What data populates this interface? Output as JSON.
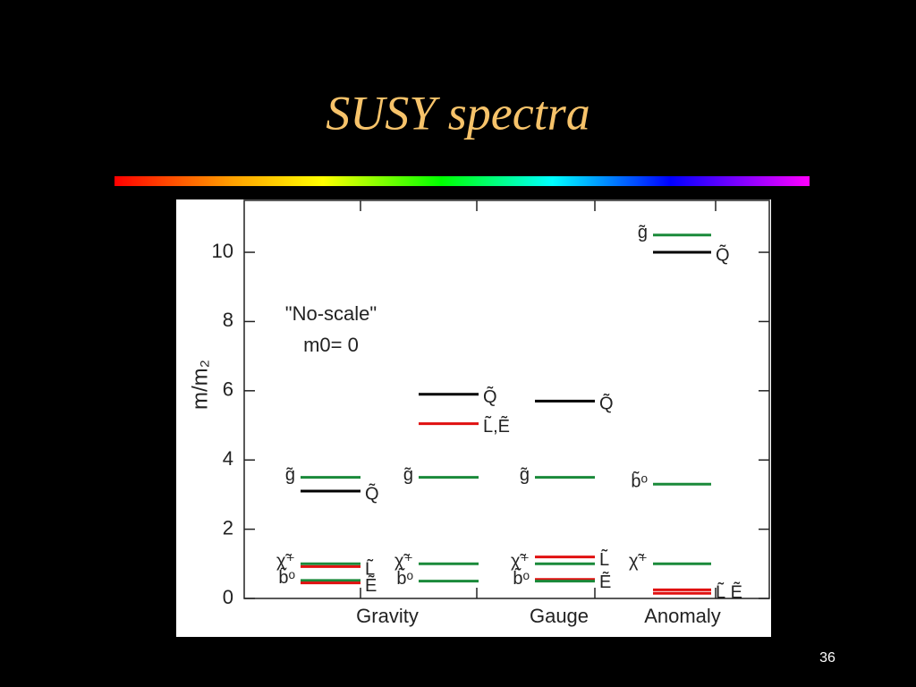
{
  "slide_title": "SUSY spectra",
  "page_number": "36",
  "chart_data": {
    "type": "level",
    "ylabel": "m/m₂",
    "ylim": [
      0,
      11.5
    ],
    "yticks": [
      0,
      2,
      4,
      6,
      8,
      10
    ],
    "categories": [
      "Gravity",
      "Gauge",
      "Anomaly"
    ],
    "annotations": [
      "\"No-scale\"",
      "m0= 0"
    ],
    "columns": [
      {
        "levels": [
          {
            "value": 3.5,
            "color": "#1a8a3a",
            "label": "g̃",
            "side": "left"
          },
          {
            "value": 3.1,
            "color": "#000000",
            "label": "Q̃",
            "side": "right"
          },
          {
            "value": 1.0,
            "color": "#1a8a3a",
            "label": "χ̃⁺",
            "side": "left"
          },
          {
            "value": 0.92,
            "color": "#e01010",
            "label": "L̃",
            "side": "right"
          },
          {
            "value": 0.52,
            "color": "#1a8a3a",
            "label": "b̃ᵒ",
            "side": "left"
          },
          {
            "value": 0.45,
            "color": "#e01010",
            "label": "Ẽ",
            "side": "right"
          }
        ]
      },
      {
        "levels": [
          {
            "value": 5.9,
            "color": "#000000",
            "label": "Q̃",
            "side": "right"
          },
          {
            "value": 5.05,
            "color": "#e01010",
            "label": "L̃,Ẽ",
            "side": "right"
          },
          {
            "value": 3.5,
            "color": "#1a8a3a",
            "label": "g̃",
            "side": "left"
          },
          {
            "value": 1.0,
            "color": "#1a8a3a",
            "label": "χ̃⁺",
            "side": "left"
          },
          {
            "value": 0.5,
            "color": "#1a8a3a",
            "label": "b̃ᵒ",
            "side": "left"
          }
        ]
      },
      {
        "levels": [
          {
            "value": 5.7,
            "color": "#000000",
            "label": "Q̃",
            "side": "right"
          },
          {
            "value": 3.5,
            "color": "#1a8a3a",
            "label": "g̃",
            "side": "left"
          },
          {
            "value": 1.2,
            "color": "#e01010",
            "label": "L̃",
            "side": "right"
          },
          {
            "value": 1.0,
            "color": "#1a8a3a",
            "label": "χ̃⁺",
            "side": "left"
          },
          {
            "value": 0.55,
            "color": "#e01010",
            "label": "Ẽ",
            "side": "right"
          },
          {
            "value": 0.5,
            "color": "#1a8a3a",
            "label": "b̃ᵒ",
            "side": "left"
          }
        ]
      },
      {
        "levels": [
          {
            "value": 10.5,
            "color": "#1a8a3a",
            "label": "g̃",
            "side": "left"
          },
          {
            "value": 10.0,
            "color": "#000000",
            "label": "Q̃",
            "side": "right"
          },
          {
            "value": 3.3,
            "color": "#1a8a3a",
            "label": "b̃ᵒ",
            "side": "left"
          },
          {
            "value": 1.0,
            "color": "#1a8a3a",
            "label": "χ̃⁺",
            "side": "left"
          },
          {
            "value": 0.25,
            "color": "#e01010",
            "label": "L̃ Ẽ",
            "side": "right"
          },
          {
            "value": 0.15,
            "color": "#e01010"
          }
        ]
      }
    ]
  }
}
